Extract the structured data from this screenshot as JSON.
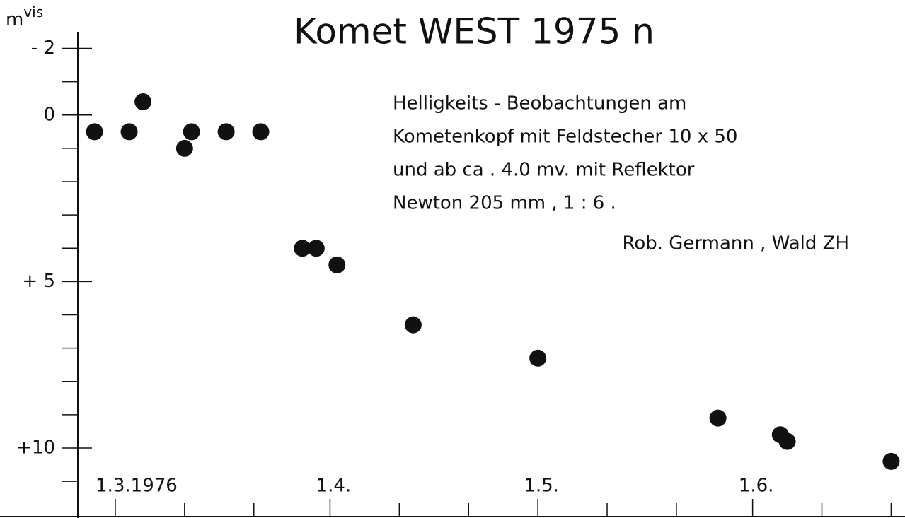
{
  "chart_data": {
    "type": "scatter",
    "title": "Komet  WEST 1975 n",
    "ylabel": "m",
    "ylabel_superscript": "vis",
    "annotation": [
      "Helligkeits - Beobachtungen  am",
      "Kometenkopf  mit  Feldstecher  10 x 50",
      "und  ab  ca . 4.0  mv.  mit   Reflektor",
      "Newton   205 mm  ,  1 :  6 ."
    ],
    "credit": "Rob.  Germann , Wald  ZH",
    "x": [
      "1976-02-27",
      "1976-03-03",
      "1976-03-05",
      "1976-03-11",
      "1976-03-12",
      "1976-03-17",
      "1976-03-22",
      "1976-03-28",
      "1976-03-30",
      "1976-04-02",
      "1976-04-13",
      "1976-05-01",
      "1976-05-27",
      "1976-06-05",
      "1976-06-06",
      "1976-06-21"
    ],
    "values": [
      0.5,
      0.5,
      -0.4,
      1.0,
      0.5,
      0.5,
      0.5,
      4.0,
      4.0,
      4.5,
      6.3,
      7.3,
      9.1,
      9.6,
      9.8,
      10.4
    ],
    "color": "#111111",
    "xlim": [
      "1976-02-25",
      "1976-06-23"
    ],
    "xticks": [
      {
        "value": "1976-03-01",
        "label": "1.3.1976"
      },
      {
        "value": "1976-04-01",
        "label": "1.4."
      },
      {
        "value": "1976-05-01",
        "label": "1.5."
      },
      {
        "value": "1976-06-01",
        "label": "1.6."
      }
    ],
    "x_minor_ticks": [
      "1976-03-11",
      "1976-03-21",
      "1976-04-11",
      "1976-04-21",
      "1976-05-11",
      "1976-05-21",
      "1976-06-11",
      "1976-06-21"
    ],
    "ylim": [
      -2.5,
      12.1
    ],
    "y_inverted": true,
    "yticks": [
      {
        "value": -2,
        "label": "- 2"
      },
      0,
      {
        "value": 5,
        "label": "+ 5"
      },
      {
        "value": 10,
        "label": "+10"
      }
    ],
    "y_minor_ticks": [
      -1,
      1,
      2,
      3,
      4,
      6,
      7,
      8,
      9,
      11
    ]
  }
}
